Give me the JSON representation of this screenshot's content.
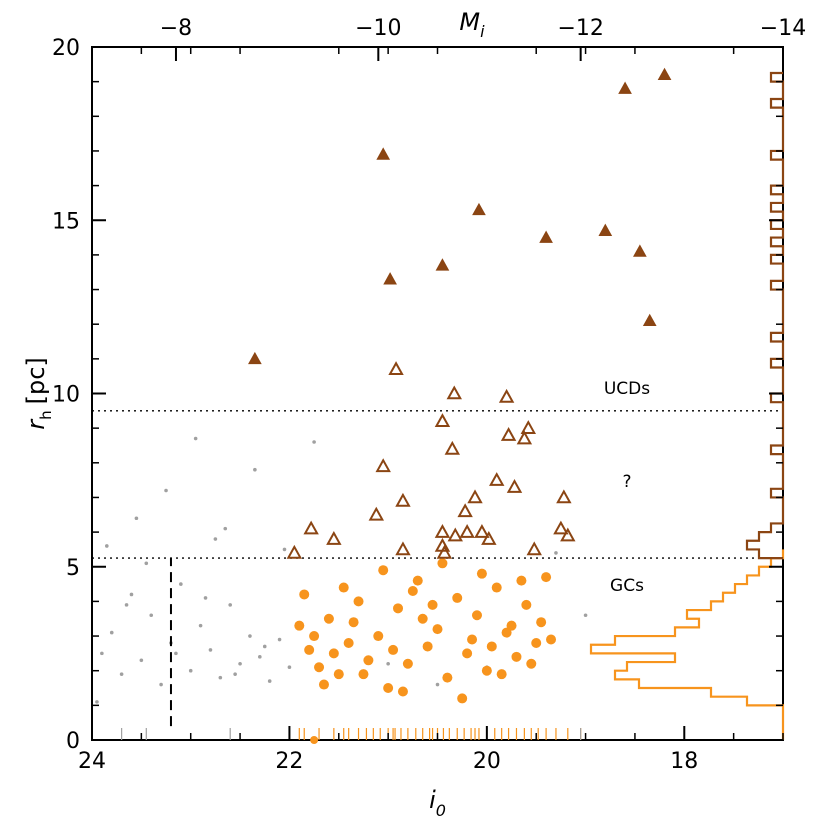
{
  "chart_data": {
    "type": "scatter",
    "title": "",
    "xlabel": "i",
    "xlabel_sub": "0",
    "ylabel": "r",
    "ylabel_sub": "h",
    "ylabel_unit": "[pc]",
    "top_xlabel": "M",
    "top_xlabel_sub": "i",
    "xlim": [
      24,
      17
    ],
    "ylim": [
      0,
      20
    ],
    "top_xlim": [
      -7.17,
      -14
    ],
    "x_ticks": [
      24,
      22,
      20,
      18
    ],
    "x_tick_labels": [
      "24",
      "22",
      "20",
      "18"
    ],
    "y_ticks": [
      0,
      5,
      10,
      15,
      20
    ],
    "y_tick_labels": [
      "0",
      "5",
      "10",
      "15",
      "20"
    ],
    "top_ticks": [
      -8,
      -10,
      -12,
      -14
    ],
    "top_tick_labels": [
      "−8",
      "−10",
      "−12",
      "−14"
    ],
    "grid": false,
    "annotations": {
      "ucd": "UCDs",
      "question": "?",
      "gc": "GCs"
    },
    "colors": {
      "gc": "#f7941d",
      "ucd": "#8b4513",
      "background": "#a0a0a0",
      "hist_gc": "#f7941d",
      "hist_ucd": "#8b4513"
    },
    "reference_lines": {
      "ucd_boundary_y": 9.5,
      "gc_boundary_y": 5.25,
      "completeness_limit_x": 23.2,
      "completeness_limit_top_y": 5.25
    },
    "series": [
      {
        "marker": "filled-triangle",
        "points": [
          [
            22.35,
            11.0
          ],
          [
            21.05,
            16.9
          ],
          [
            20.98,
            13.3
          ],
          [
            20.45,
            13.7
          ],
          [
            20.08,
            15.3
          ],
          [
            19.4,
            14.5
          ],
          [
            18.8,
            14.7
          ],
          [
            18.6,
            18.8
          ],
          [
            18.45,
            14.1
          ],
          [
            18.35,
            12.1
          ],
          [
            18.2,
            19.2
          ]
        ]
      },
      {
        "marker": "open-triangle",
        "points": [
          [
            21.95,
            5.4
          ],
          [
            21.78,
            6.1
          ],
          [
            21.55,
            5.8
          ],
          [
            21.12,
            6.5
          ],
          [
            21.05,
            7.9
          ],
          [
            20.92,
            10.7
          ],
          [
            20.85,
            6.9
          ],
          [
            20.85,
            5.5
          ],
          [
            20.45,
            9.2
          ],
          [
            20.45,
            6.0
          ],
          [
            20.45,
            5.6
          ],
          [
            20.43,
            5.4
          ],
          [
            20.33,
            10.0
          ],
          [
            20.35,
            8.4
          ],
          [
            20.32,
            5.9
          ],
          [
            20.22,
            6.6
          ],
          [
            20.2,
            6.0
          ],
          [
            20.12,
            7.0
          ],
          [
            20.05,
            6.0
          ],
          [
            19.98,
            5.8
          ],
          [
            19.9,
            7.5
          ],
          [
            19.8,
            9.9
          ],
          [
            19.78,
            8.8
          ],
          [
            19.72,
            7.3
          ],
          [
            19.62,
            8.7
          ],
          [
            19.58,
            9.0
          ],
          [
            19.52,
            5.5
          ],
          [
            19.25,
            6.1
          ],
          [
            19.22,
            7.0
          ],
          [
            19.18,
            5.9
          ]
        ]
      },
      {
        "marker": "filled-circle",
        "points": [
          [
            21.9,
            3.3
          ],
          [
            21.8,
            2.6
          ],
          [
            21.7,
            2.1
          ],
          [
            21.6,
            3.5
          ],
          [
            21.5,
            1.9
          ],
          [
            21.4,
            2.8
          ],
          [
            21.3,
            4.0
          ],
          [
            21.2,
            2.3
          ],
          [
            21.1,
            3.0
          ],
          [
            21.0,
            1.5
          ],
          [
            20.9,
            3.8
          ],
          [
            20.8,
            2.2
          ],
          [
            20.7,
            4.6
          ],
          [
            20.6,
            2.7
          ],
          [
            20.5,
            3.2
          ],
          [
            20.4,
            1.8
          ],
          [
            20.3,
            4.1
          ],
          [
            20.2,
            2.5
          ],
          [
            20.1,
            3.6
          ],
          [
            20.0,
            2.0
          ],
          [
            19.9,
            4.4
          ],
          [
            19.8,
            3.1
          ],
          [
            19.7,
            2.4
          ],
          [
            19.6,
            3.9
          ],
          [
            19.5,
            2.8
          ],
          [
            19.4,
            4.7
          ],
          [
            21.85,
            4.2
          ],
          [
            21.65,
            1.6
          ],
          [
            21.45,
            4.4
          ],
          [
            21.25,
            1.9
          ],
          [
            21.05,
            4.9
          ],
          [
            20.85,
            1.4
          ],
          [
            20.65,
            3.5
          ],
          [
            20.45,
            5.1
          ],
          [
            20.25,
            1.2
          ],
          [
            20.05,
            4.8
          ],
          [
            19.85,
            1.9
          ],
          [
            19.65,
            4.6
          ],
          [
            19.45,
            3.4
          ],
          [
            19.35,
            2.9
          ],
          [
            21.75,
            3.0
          ],
          [
            21.35,
            3.4
          ],
          [
            20.95,
            2.6
          ],
          [
            20.55,
            3.9
          ],
          [
            20.15,
            2.9
          ],
          [
            19.75,
            3.3
          ],
          [
            21.55,
            2.5
          ],
          [
            20.75,
            4.3
          ],
          [
            19.95,
            2.7
          ],
          [
            19.55,
            2.2
          ]
        ]
      },
      {
        "marker": "small-dot",
        "points": [
          [
            23.9,
            2.5
          ],
          [
            23.8,
            3.1
          ],
          [
            23.7,
            1.9
          ],
          [
            23.6,
            4.2
          ],
          [
            23.5,
            2.3
          ],
          [
            23.4,
            3.6
          ],
          [
            23.3,
            1.6
          ],
          [
            23.2,
            2.8
          ],
          [
            23.1,
            4.5
          ],
          [
            23.0,
            2.0
          ],
          [
            22.9,
            3.3
          ],
          [
            22.8,
            2.6
          ],
          [
            22.7,
            1.8
          ],
          [
            22.6,
            3.9
          ],
          [
            22.5,
            2.2
          ],
          [
            22.4,
            3.0
          ],
          [
            22.3,
            2.4
          ],
          [
            22.2,
            1.7
          ],
          [
            22.1,
            2.9
          ],
          [
            22.0,
            2.1
          ],
          [
            23.85,
            5.6
          ],
          [
            23.55,
            6.4
          ],
          [
            23.25,
            7.2
          ],
          [
            22.95,
            8.7
          ],
          [
            22.65,
            6.1
          ],
          [
            22.35,
            7.8
          ],
          [
            22.05,
            5.5
          ],
          [
            23.65,
            3.9
          ],
          [
            23.15,
            2.5
          ],
          [
            22.85,
            4.1
          ],
          [
            22.55,
            1.9
          ],
          [
            22.25,
            2.7
          ],
          [
            21.5,
            1.9
          ],
          [
            21.0,
            2.2
          ],
          [
            20.5,
            1.6
          ],
          [
            20.0,
            2.1
          ],
          [
            19.3,
            5.4
          ],
          [
            19.0,
            3.6
          ],
          [
            21.75,
            8.6
          ],
          [
            23.95,
            1.1
          ],
          [
            23.45,
            5.1
          ],
          [
            22.75,
            5.8
          ]
        ]
      }
    ],
    "histogram_gc": {
      "bin_width": 0.25,
      "bins_start": 0.0,
      "counts": [
        0,
        0,
        0,
        0,
        3,
        6,
        12,
        14,
        13,
        9,
        16,
        14,
        9,
        7,
        8,
        6,
        5,
        4,
        3,
        2,
        1,
        0
      ]
    },
    "histogram_ucd": {
      "bin_width": 0.25,
      "bins_start": 5.25,
      "counts": [
        2,
        3,
        2,
        1,
        0,
        0,
        0,
        1,
        0,
        0,
        0,
        0,
        1,
        0,
        0,
        0,
        0,
        0,
        1,
        0,
        0,
        0,
        1,
        0,
        0,
        1,
        0,
        0,
        0,
        0,
        0,
        1,
        0,
        0,
        1,
        0,
        1,
        0,
        1,
        0,
        1,
        0,
        1,
        0,
        0,
        0,
        1,
        0,
        0,
        0,
        0,
        0,
        1,
        0,
        0,
        1
      ]
    },
    "rug_gc_x": [
      21.85,
      21.7,
      21.55,
      21.4,
      21.3,
      21.22,
      21.15,
      21.08,
      21.0,
      20.93,
      20.87,
      20.8,
      20.72,
      20.65,
      20.58,
      20.5,
      20.44,
      20.38,
      20.3,
      20.23,
      20.16,
      20.08,
      20.0,
      19.92,
      19.85,
      19.78,
      19.7,
      19.62,
      19.55,
      19.48,
      19.4,
      19.3,
      19.18,
      19.05,
      21.9,
      21.45,
      20.95,
      20.55,
      20.12
    ],
    "rug_gc_labels_note": [],
    "rug_other_x": [
      23.7,
      23.45,
      22.6,
      19.05
    ],
    "rug_marker_x": 21.75,
    "rug_marker_y": 0.0
  }
}
